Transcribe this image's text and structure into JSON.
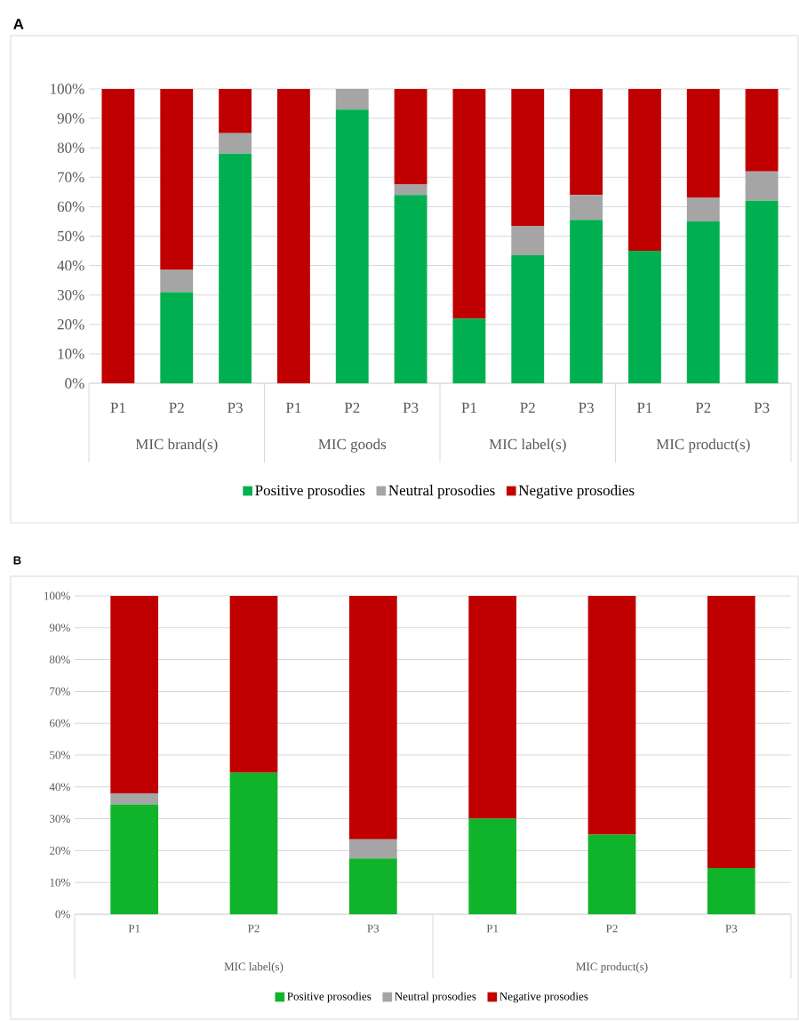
{
  "chart_data": [
    {
      "type": "bar",
      "title": "A",
      "stacked": true,
      "grid": "y",
      "legend": "bottom",
      "categories": [
        "P1",
        "P2",
        "P3",
        "P1",
        "P2",
        "P3",
        "P1",
        "P2",
        "P3",
        "P1",
        "P2",
        "P3"
      ],
      "annotations": [
        "MIC brand(s)",
        "MIC goods",
        "MIC label(s)",
        "MIC product(s)"
      ],
      "series": [
        {
          "name": "Positive prosodies",
          "color": "#00b050",
          "values": [
            0,
            31,
            78,
            0,
            93,
            64,
            22,
            43.5,
            55.5,
            45,
            55,
            62
          ]
        },
        {
          "name": "Neutral prosodies",
          "color": "#a5a5a5",
          "values": [
            0,
            7.5,
            7,
            0,
            7,
            3.5,
            0,
            10,
            8.5,
            0,
            8,
            10
          ]
        },
        {
          "name": "Negative prosodies",
          "color": "#c00000",
          "values": [
            100,
            61.5,
            15,
            100,
            0,
            32.5,
            78,
            46.5,
            36,
            55,
            37,
            28
          ]
        }
      ],
      "ylim": [
        0,
        100
      ],
      "yticks": [
        {
          "value": 0,
          "label": "0%"
        },
        {
          "value": 10,
          "label": "10%"
        },
        {
          "value": 20,
          "label": "20%"
        },
        {
          "value": 30,
          "label": "30%"
        },
        {
          "value": 40,
          "label": "40%"
        },
        {
          "value": 50,
          "label": "50%"
        },
        {
          "value": 60,
          "label": "60%"
        },
        {
          "value": 70,
          "label": "70%"
        },
        {
          "value": 80,
          "label": "80%"
        },
        {
          "value": 90,
          "label": "90%"
        },
        {
          "value": 100,
          "label": "100%"
        }
      ]
    },
    {
      "type": "bar",
      "title": "B",
      "stacked": true,
      "grid": "y",
      "legend": "bottom",
      "categories": [
        "P1",
        "P2",
        "P3",
        "P1",
        "P2",
        "P3"
      ],
      "annotations": [
        "MIC label(s)",
        "MIC product(s)"
      ],
      "series": [
        {
          "name": "Positive prosodies",
          "color": "#10b42a",
          "values": [
            34.5,
            44.5,
            17.5,
            30,
            25,
            14.5
          ]
        },
        {
          "name": "Neutral prosodies",
          "color": "#a5a5a5",
          "values": [
            3.5,
            0,
            6,
            0,
            0,
            0
          ]
        },
        {
          "name": "Negative prosodies",
          "color": "#c00000",
          "values": [
            62,
            55.5,
            76.5,
            70,
            75,
            85.5
          ]
        }
      ],
      "ylim": [
        0,
        100
      ],
      "yticks": [
        {
          "value": 0,
          "label": "0%"
        },
        {
          "value": 10,
          "label": "10%"
        },
        {
          "value": 20,
          "label": "20%"
        },
        {
          "value": 30,
          "label": "30%"
        },
        {
          "value": 40,
          "label": "40%"
        },
        {
          "value": 50,
          "label": "50%"
        },
        {
          "value": 60,
          "label": "60%"
        },
        {
          "value": 70,
          "label": "70%"
        },
        {
          "value": 80,
          "label": "80%"
        },
        {
          "value": 90,
          "label": "90%"
        },
        {
          "value": 100,
          "label": "100%"
        }
      ]
    }
  ]
}
